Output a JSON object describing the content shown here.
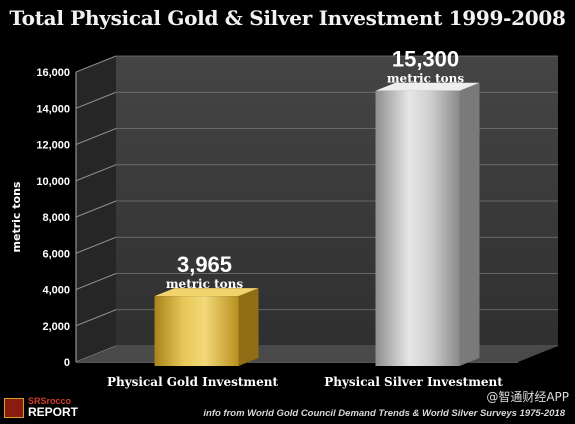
{
  "chart_data": {
    "type": "bar",
    "title": "Total Physical Gold & Silver Investment 1999-2008",
    "ylabel": "metric tons",
    "xlabel": "",
    "categories": [
      "Physical Gold Investment",
      "Physical Silver Investment"
    ],
    "values": [
      3965,
      15300
    ],
    "value_labels": [
      "3,965",
      "15,300"
    ],
    "value_unit_label": "metric tons",
    "ylim": [
      0,
      16000
    ],
    "yticks": [
      "0",
      "2,000",
      "4,000",
      "6,000",
      "8,000",
      "10,000",
      "12,000",
      "14,000",
      "16,000"
    ],
    "ytick_values": [
      0,
      2000,
      4000,
      6000,
      8000,
      10000,
      12000,
      14000,
      16000
    ],
    "grid": true,
    "colors": {
      "gold": "#d4ac2b",
      "silver": "#c2c2c2",
      "background": "#000000",
      "wall": "#3d3d3d"
    }
  },
  "source": "info from World Gold Council Demand Trends & World Silver Surveys 1975-2018",
  "logo": {
    "top": "SRSrocco",
    "bottom": "REPORT"
  },
  "watermark": "@智通财经APP"
}
